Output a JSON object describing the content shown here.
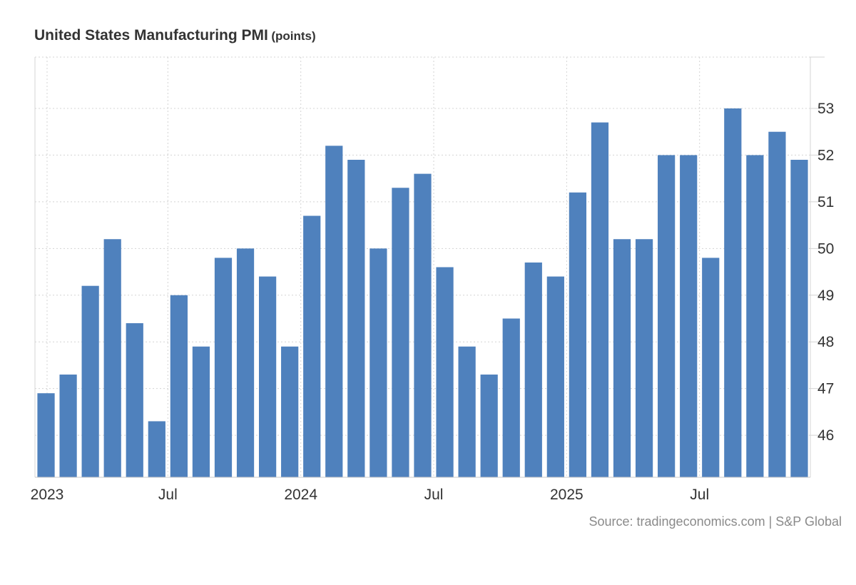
{
  "chart_title": "United States Manufacturing PMI",
  "chart_unit": "(points)",
  "source_text": "Source: tradingeconomics.com | S&P Global",
  "colors": {
    "bar": "#4f81bd",
    "grid": "#d4d4d4",
    "axis_text": "#333333",
    "source": "#8a8a8a"
  },
  "chart_data": {
    "type": "bar",
    "title": "United States Manufacturing PMI",
    "unit": "(points)",
    "xlabel": "",
    "ylabel": "",
    "y_axis_position": "right",
    "grid": true,
    "ylim": [
      45.1,
      54.1
    ],
    "yticks": [
      46,
      47,
      48,
      49,
      50,
      51,
      52,
      53
    ],
    "x_tick_labels": [
      {
        "label": "2023",
        "index": 0
      },
      {
        "label": "Jul",
        "index": 6
      },
      {
        "label": "2024",
        "index": 12
      },
      {
        "label": "Jul",
        "index": 18
      },
      {
        "label": "2025",
        "index": 24
      },
      {
        "label": "Jul",
        "index": 30
      }
    ],
    "categories": [
      "2023-01",
      "2023-02",
      "2023-03",
      "2023-04",
      "2023-05",
      "2023-06",
      "2023-07",
      "2023-08",
      "2023-09",
      "2023-10",
      "2023-11",
      "2023-12",
      "2024-01",
      "2024-02",
      "2024-03",
      "2024-04",
      "2024-05",
      "2024-06",
      "2024-07",
      "2024-08",
      "2024-09",
      "2024-10",
      "2024-11",
      "2024-12",
      "2025-01",
      "2025-02",
      "2025-03",
      "2025-04",
      "2025-05",
      "2025-06",
      "2025-07",
      "2025-08",
      "2025-09",
      "2025-10",
      "2025-11"
    ],
    "values": [
      46.9,
      47.3,
      49.2,
      50.2,
      48.4,
      46.3,
      49.0,
      47.9,
      49.8,
      50.0,
      49.4,
      47.9,
      50.7,
      52.2,
      51.9,
      50.0,
      51.3,
      51.6,
      49.6,
      47.9,
      47.3,
      48.5,
      49.7,
      49.4,
      51.2,
      52.7,
      50.2,
      50.2,
      52.0,
      52.0,
      49.8,
      53.0,
      52.0,
      52.5,
      51.9
    ]
  }
}
